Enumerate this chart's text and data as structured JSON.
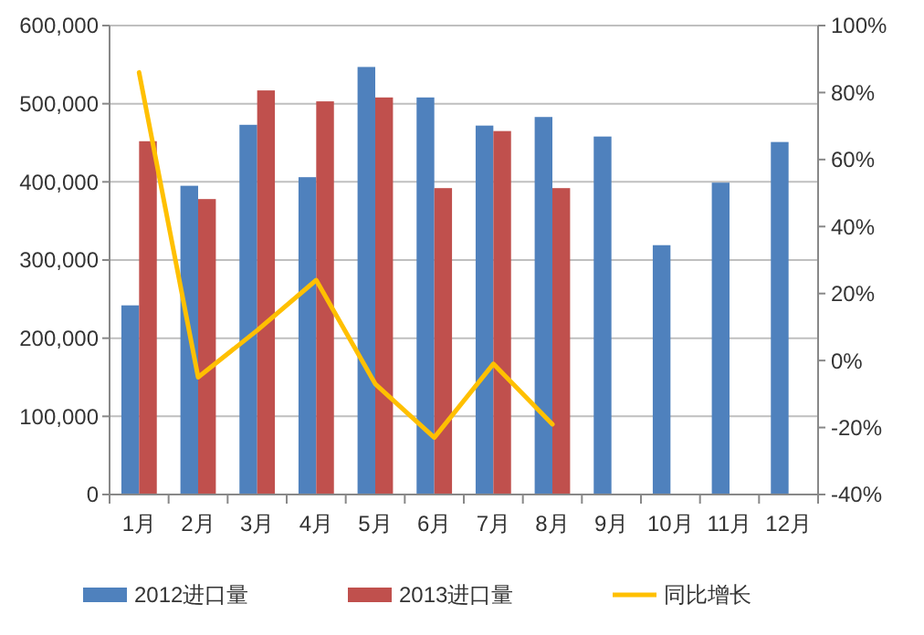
{
  "chart_data": {
    "type": "bar",
    "categories": [
      "1月",
      "2月",
      "3月",
      "4月",
      "5月",
      "6月",
      "7月",
      "8月",
      "9月",
      "10月",
      "11月",
      "12月"
    ],
    "series": [
      {
        "name": "2012进口量",
        "color": "#4f81bd",
        "values": [
          242000,
          395000,
          473000,
          406000,
          547000,
          508000,
          472000,
          483000,
          458000,
          319000,
          399000,
          451000
        ]
      },
      {
        "name": "2013进口量",
        "color": "#c0504d",
        "values": [
          452000,
          378000,
          517000,
          503000,
          508000,
          392000,
          465000,
          392000,
          null,
          null,
          null,
          null
        ]
      },
      {
        "name": "同比增长",
        "type": "line",
        "axis": "y2",
        "color": "#ffc000",
        "values": [
          86,
          -5,
          9,
          24,
          -7,
          -23,
          -1,
          -19,
          null,
          null,
          null,
          null
        ]
      }
    ],
    "ylim": [
      0,
      600000
    ],
    "yticks": [
      {
        "value": 0,
        "label": "0"
      },
      {
        "value": 100000,
        "label": "100,000"
      },
      {
        "value": 200000,
        "label": "200,000"
      },
      {
        "value": 300000,
        "label": "300,000"
      },
      {
        "value": 400000,
        "label": "400,000"
      },
      {
        "value": 500000,
        "label": "500,000"
      },
      {
        "value": 600000,
        "label": "600,000"
      }
    ],
    "y2lim": [
      -40,
      100
    ],
    "y2ticks": [
      {
        "value": -40,
        "label": "-40%"
      },
      {
        "value": -20,
        "label": "-20%"
      },
      {
        "value": 0,
        "label": "0%"
      },
      {
        "value": 20,
        "label": "20%"
      },
      {
        "value": 40,
        "label": "40%"
      },
      {
        "value": 60,
        "label": "60%"
      },
      {
        "value": 80,
        "label": "80%"
      },
      {
        "value": 100,
        "label": "100%"
      }
    ],
    "grid": "y",
    "legend": "bottom",
    "marker": "none"
  }
}
